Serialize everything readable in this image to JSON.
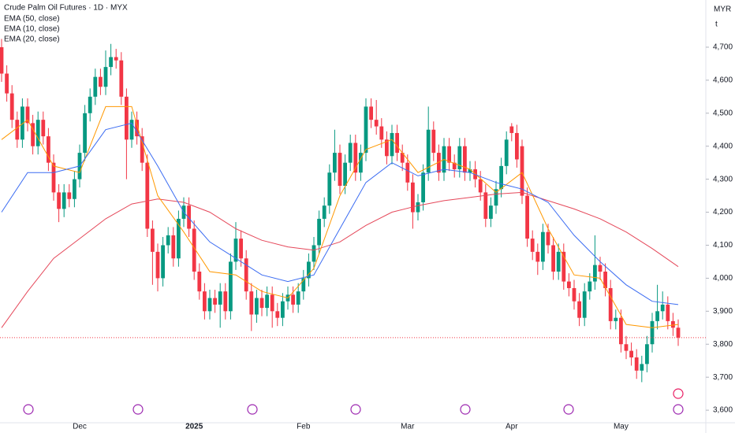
{
  "chart_data": {
    "type": "candlestick",
    "title": "Crude Palm Oil Futures · 1D · MYX",
    "currency": "MYR",
    "unit_mark": "t",
    "up_color": "#089981",
    "down_color": "#f23645",
    "categories": [
      null,
      null,
      null,
      null,
      null,
      null,
      null,
      null,
      null,
      null,
      null,
      null,
      null,
      null,
      null,
      "Dec",
      null,
      null,
      null,
      null,
      null,
      null,
      null,
      null,
      null,
      null,
      null,
      null,
      null,
      null,
      null,
      null,
      null,
      null,
      null,
      null,
      null,
      "2025",
      null,
      null,
      null,
      null,
      null,
      null,
      null,
      null,
      null,
      null,
      null,
      null,
      null,
      null,
      null,
      null,
      null,
      null,
      null,
      null,
      "Feb",
      null,
      null,
      null,
      null,
      null,
      null,
      null,
      null,
      null,
      null,
      null,
      null,
      null,
      null,
      null,
      null,
      null,
      null,
      null,
      "Mar",
      null,
      null,
      null,
      null,
      null,
      null,
      null,
      null,
      null,
      null,
      null,
      null,
      null,
      null,
      null,
      null,
      null,
      null,
      null,
      "Apr",
      null,
      null,
      null,
      null,
      null,
      null,
      null,
      null,
      null,
      null,
      null,
      null,
      null,
      null,
      null,
      null,
      null,
      null,
      null,
      null,
      "May",
      null,
      null,
      null,
      null,
      null,
      null,
      null,
      null,
      null,
      null,
      null
    ],
    "open": [
      4700,
      4620,
      4560,
      4480,
      4420,
      4520,
      4470,
      4400,
      4480,
      4430,
      4350,
      4260,
      4210,
      4260,
      4240,
      4300,
      4380,
      4500,
      4550,
      4610,
      4580,
      4640,
      4670,
      4660,
      4550,
      4420,
      4480,
      4430,
      4350,
      4150,
      4080,
      4000,
      4100,
      4130,
      4060,
      4180,
      4220,
      4150,
      4020,
      3960,
      3900,
      3940,
      3920,
      3960,
      3900,
      4050,
      4120,
      4060,
      3960,
      3890,
      3940,
      3910,
      3950,
      3900,
      3880,
      3930,
      3950,
      3920,
      3960,
      4000,
      4050,
      4100,
      4180,
      4220,
      4320,
      4380,
      4280,
      4350,
      4410,
      4320,
      4380,
      4520,
      4480,
      4460,
      4420,
      4370,
      4440,
      4380,
      4350,
      4290,
      4200,
      4230,
      4320,
      4450,
      4380,
      4320,
      4400,
      4350,
      4330,
      4400,
      4320,
      4330,
      4300,
      4260,
      4180,
      4220,
      4270,
      4340,
      4460,
      4440,
      4400,
      4250,
      4120,
      4080,
      4050,
      4140,
      4100,
      4020,
      4080,
      3990,
      3970,
      3930,
      3880,
      3960,
      3990,
      4040,
      4020,
      3970,
      3870,
      3880,
      3800,
      3780,
      3760,
      3720,
      3740,
      3800,
      3870,
      3900,
      3920,
      3870,
      3850
    ],
    "high": [
      4725,
      4645,
      4585,
      4505,
      4545,
      4545,
      4495,
      4505,
      4505,
      4455,
      4375,
      4285,
      4285,
      4285,
      4325,
      4405,
      4525,
      4575,
      4635,
      4635,
      4690,
      4710,
      4695,
      4685,
      4575,
      4505,
      4505,
      4455,
      4375,
      4175,
      4105,
      4125,
      4155,
      4155,
      4205,
      4245,
      4245,
      4175,
      4045,
      3985,
      3965,
      3965,
      3985,
      3985,
      4075,
      4170,
      4145,
      4085,
      3985,
      3965,
      3965,
      3975,
      3975,
      3925,
      3955,
      3975,
      3975,
      3985,
      4025,
      4075,
      4125,
      4205,
      4245,
      4345,
      4450,
      4405,
      4375,
      4435,
      4435,
      4405,
      4545,
      4545,
      4540,
      4485,
      4445,
      4465,
      4465,
      4405,
      4375,
      4315,
      4255,
      4345,
      4520,
      4475,
      4405,
      4425,
      4425,
      4375,
      4425,
      4425,
      4355,
      4355,
      4325,
      4285,
      4245,
      4295,
      4365,
      4445,
      4470,
      4465,
      4420,
      4275,
      4145,
      4105,
      4165,
      4165,
      4125,
      4105,
      4105,
      4015,
      3995,
      3955,
      3985,
      4015,
      4130,
      4065,
      4045,
      3995,
      3905,
      3905,
      3825,
      3805,
      3785,
      3765,
      3825,
      3895,
      3980,
      3960,
      3945,
      3895,
      3875
    ],
    "low": [
      4595,
      4535,
      4455,
      4395,
      4395,
      4445,
      4375,
      4375,
      4405,
      4325,
      4235,
      4170,
      4185,
      4215,
      4215,
      4275,
      4355,
      4475,
      4525,
      4555,
      4555,
      4615,
      4635,
      4525,
      4300,
      4395,
      4405,
      4325,
      4125,
      3980,
      3960,
      3975,
      4075,
      4035,
      4035,
      4155,
      4125,
      3995,
      3935,
      3875,
      3875,
      3895,
      3850,
      3875,
      3875,
      4025,
      4035,
      3935,
      3840,
      3865,
      3885,
      3885,
      3850,
      3855,
      3855,
      3905,
      3895,
      3895,
      3935,
      3975,
      4025,
      4075,
      4155,
      4195,
      4295,
      4255,
      4255,
      4325,
      4295,
      4295,
      4355,
      4455,
      4435,
      4395,
      4345,
      4345,
      4355,
      4325,
      4265,
      4150,
      4175,
      4205,
      4295,
      4355,
      4295,
      4295,
      4325,
      4305,
      4305,
      4295,
      4295,
      4275,
      4235,
      4155,
      4155,
      4195,
      4245,
      4315,
      4415,
      4335,
      4225,
      4095,
      4055,
      4010,
      4025,
      4075,
      3995,
      3995,
      3965,
      3945,
      3905,
      3855,
      3855,
      3935,
      3965,
      3995,
      3945,
      3845,
      3845,
      3775,
      3755,
      3735,
      3695,
      3685,
      3715,
      3775,
      3845,
      3875,
      3845,
      3825,
      3795
    ],
    "close": [
      4620,
      4560,
      4480,
      4420,
      4520,
      4470,
      4400,
      4480,
      4430,
      4350,
      4260,
      4210,
      4260,
      4240,
      4300,
      4380,
      4500,
      4550,
      4610,
      4580,
      4640,
      4670,
      4660,
      4550,
      4420,
      4480,
      4430,
      4350,
      4150,
      4080,
      4000,
      4100,
      4130,
      4060,
      4180,
      4220,
      4150,
      4020,
      3960,
      3900,
      3940,
      3920,
      3960,
      3900,
      4050,
      4120,
      4060,
      3960,
      3890,
      3940,
      3910,
      3950,
      3900,
      3880,
      3930,
      3950,
      3920,
      3960,
      4000,
      4050,
      4100,
      4180,
      4220,
      4320,
      4380,
      4280,
      4350,
      4410,
      4320,
      4380,
      4520,
      4480,
      4460,
      4420,
      4370,
      4440,
      4380,
      4350,
      4290,
      4200,
      4230,
      4320,
      4450,
      4380,
      4320,
      4400,
      4350,
      4330,
      4400,
      4320,
      4330,
      4300,
      4260,
      4180,
      4220,
      4270,
      4340,
      4420,
      4440,
      4360,
      4250,
      4120,
      4080,
      4050,
      4140,
      4100,
      4020,
      4080,
      3990,
      3970,
      3930,
      3880,
      3960,
      3990,
      4040,
      4020,
      3970,
      3870,
      3880,
      3800,
      3780,
      3760,
      3720,
      3740,
      3800,
      3870,
      3900,
      3920,
      3870,
      3850,
      3820
    ],
    "series": [
      {
        "name": "EMA (50, close)",
        "color": "#e5485a",
        "x": [
          0,
          5,
          10,
          15,
          20,
          25,
          30,
          35,
          40,
          45,
          50,
          55,
          60,
          65,
          70,
          75,
          80,
          85,
          90,
          95,
          100,
          105,
          110,
          115,
          120,
          125,
          130
        ],
        "values": [
          3850,
          3960,
          4060,
          4120,
          4180,
          4225,
          4240,
          4230,
          4200,
          4150,
          4115,
          4095,
          4085,
          4110,
          4160,
          4200,
          4220,
          4235,
          4245,
          4255,
          4260,
          4235,
          4210,
          4180,
          4140,
          4090,
          4035
        ]
      },
      {
        "name": "EMA (10, close)",
        "color": "#ff9800",
        "x": [
          0,
          5,
          10,
          15,
          20,
          25,
          30,
          35,
          40,
          45,
          50,
          55,
          60,
          65,
          70,
          75,
          80,
          85,
          90,
          95,
          100,
          105,
          110,
          115,
          120,
          125,
          130
        ],
        "values": [
          4420,
          4480,
          4340,
          4320,
          4520,
          4520,
          4250,
          4140,
          4020,
          4010,
          3960,
          3940,
          4030,
          4250,
          4390,
          4420,
          4320,
          4360,
          4330,
          4260,
          4320,
          4150,
          4010,
          4000,
          3860,
          3850,
          3860
        ]
      },
      {
        "name": "EMA (20, close)",
        "color": "#3b6cf2",
        "x": [
          0,
          5,
          10,
          15,
          20,
          25,
          30,
          35,
          40,
          45,
          50,
          55,
          60,
          65,
          70,
          75,
          80,
          85,
          90,
          95,
          100,
          105,
          110,
          115,
          120,
          125,
          130
        ],
        "values": [
          4200,
          4320,
          4320,
          4340,
          4450,
          4470,
          4340,
          4200,
          4110,
          4060,
          4010,
          3990,
          4010,
          4150,
          4290,
          4350,
          4310,
          4330,
          4320,
          4290,
          4270,
          4230,
          4130,
          4050,
          3980,
          3930,
          3920
        ]
      }
    ],
    "ylim": [
      3562,
      4843
    ],
    "yticks": [
      {
        "value": 3600,
        "label": "3,600"
      },
      {
        "value": 3700,
        "label": "3,700"
      },
      {
        "value": 3800,
        "label": "3,800"
      },
      {
        "value": 3900,
        "label": "3,900"
      },
      {
        "value": 4000,
        "label": "4,000"
      },
      {
        "value": 4100,
        "label": "4,100"
      },
      {
        "value": 4200,
        "label": "4,200"
      },
      {
        "value": 4300,
        "label": "4,300"
      },
      {
        "value": 4400,
        "label": "4,400"
      },
      {
        "value": 4500,
        "label": "4,500"
      },
      {
        "value": 4600,
        "label": "4,600"
      },
      {
        "value": 4700,
        "label": "4,700"
      }
    ],
    "grid": false
  }
}
